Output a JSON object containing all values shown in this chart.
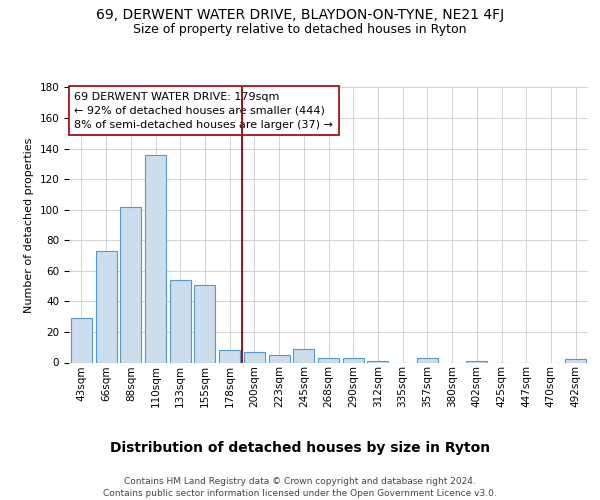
{
  "title": "69, DERWENT WATER DRIVE, BLAYDON-ON-TYNE, NE21 4FJ",
  "subtitle": "Size of property relative to detached houses in Ryton",
  "xlabel": "Distribution of detached houses by size in Ryton",
  "ylabel": "Number of detached properties",
  "bin_labels": [
    "43sqm",
    "66sqm",
    "88sqm",
    "110sqm",
    "133sqm",
    "155sqm",
    "178sqm",
    "200sqm",
    "223sqm",
    "245sqm",
    "268sqm",
    "290sqm",
    "312sqm",
    "335sqm",
    "357sqm",
    "380sqm",
    "402sqm",
    "425sqm",
    "447sqm",
    "470sqm",
    "492sqm"
  ],
  "bar_heights": [
    29,
    73,
    102,
    136,
    54,
    51,
    8,
    7,
    5,
    9,
    3,
    3,
    1,
    0,
    3,
    0,
    1,
    0,
    0,
    0,
    2
  ],
  "bar_color": "#ccdded",
  "bar_edge_color": "#5599cc",
  "vline_x": 6.5,
  "vline_color": "#990000",
  "annotation_line1": "69 DERWENT WATER DRIVE: 179sqm",
  "annotation_line2": "← 92% of detached houses are smaller (444)",
  "annotation_line3": "8% of semi-detached houses are larger (37) →",
  "annotation_box_edge": "#990000",
  "ylim": [
    0,
    180
  ],
  "yticks": [
    0,
    20,
    40,
    60,
    80,
    100,
    120,
    140,
    160,
    180
  ],
  "footer": "Contains HM Land Registry data © Crown copyright and database right 2024.\nContains public sector information licensed under the Open Government Licence v3.0.",
  "title_fontsize": 10,
  "subtitle_fontsize": 9,
  "xlabel_fontsize": 10,
  "ylabel_fontsize": 8,
  "tick_fontsize": 7.5,
  "annotation_fontsize": 8,
  "footer_fontsize": 6.5
}
